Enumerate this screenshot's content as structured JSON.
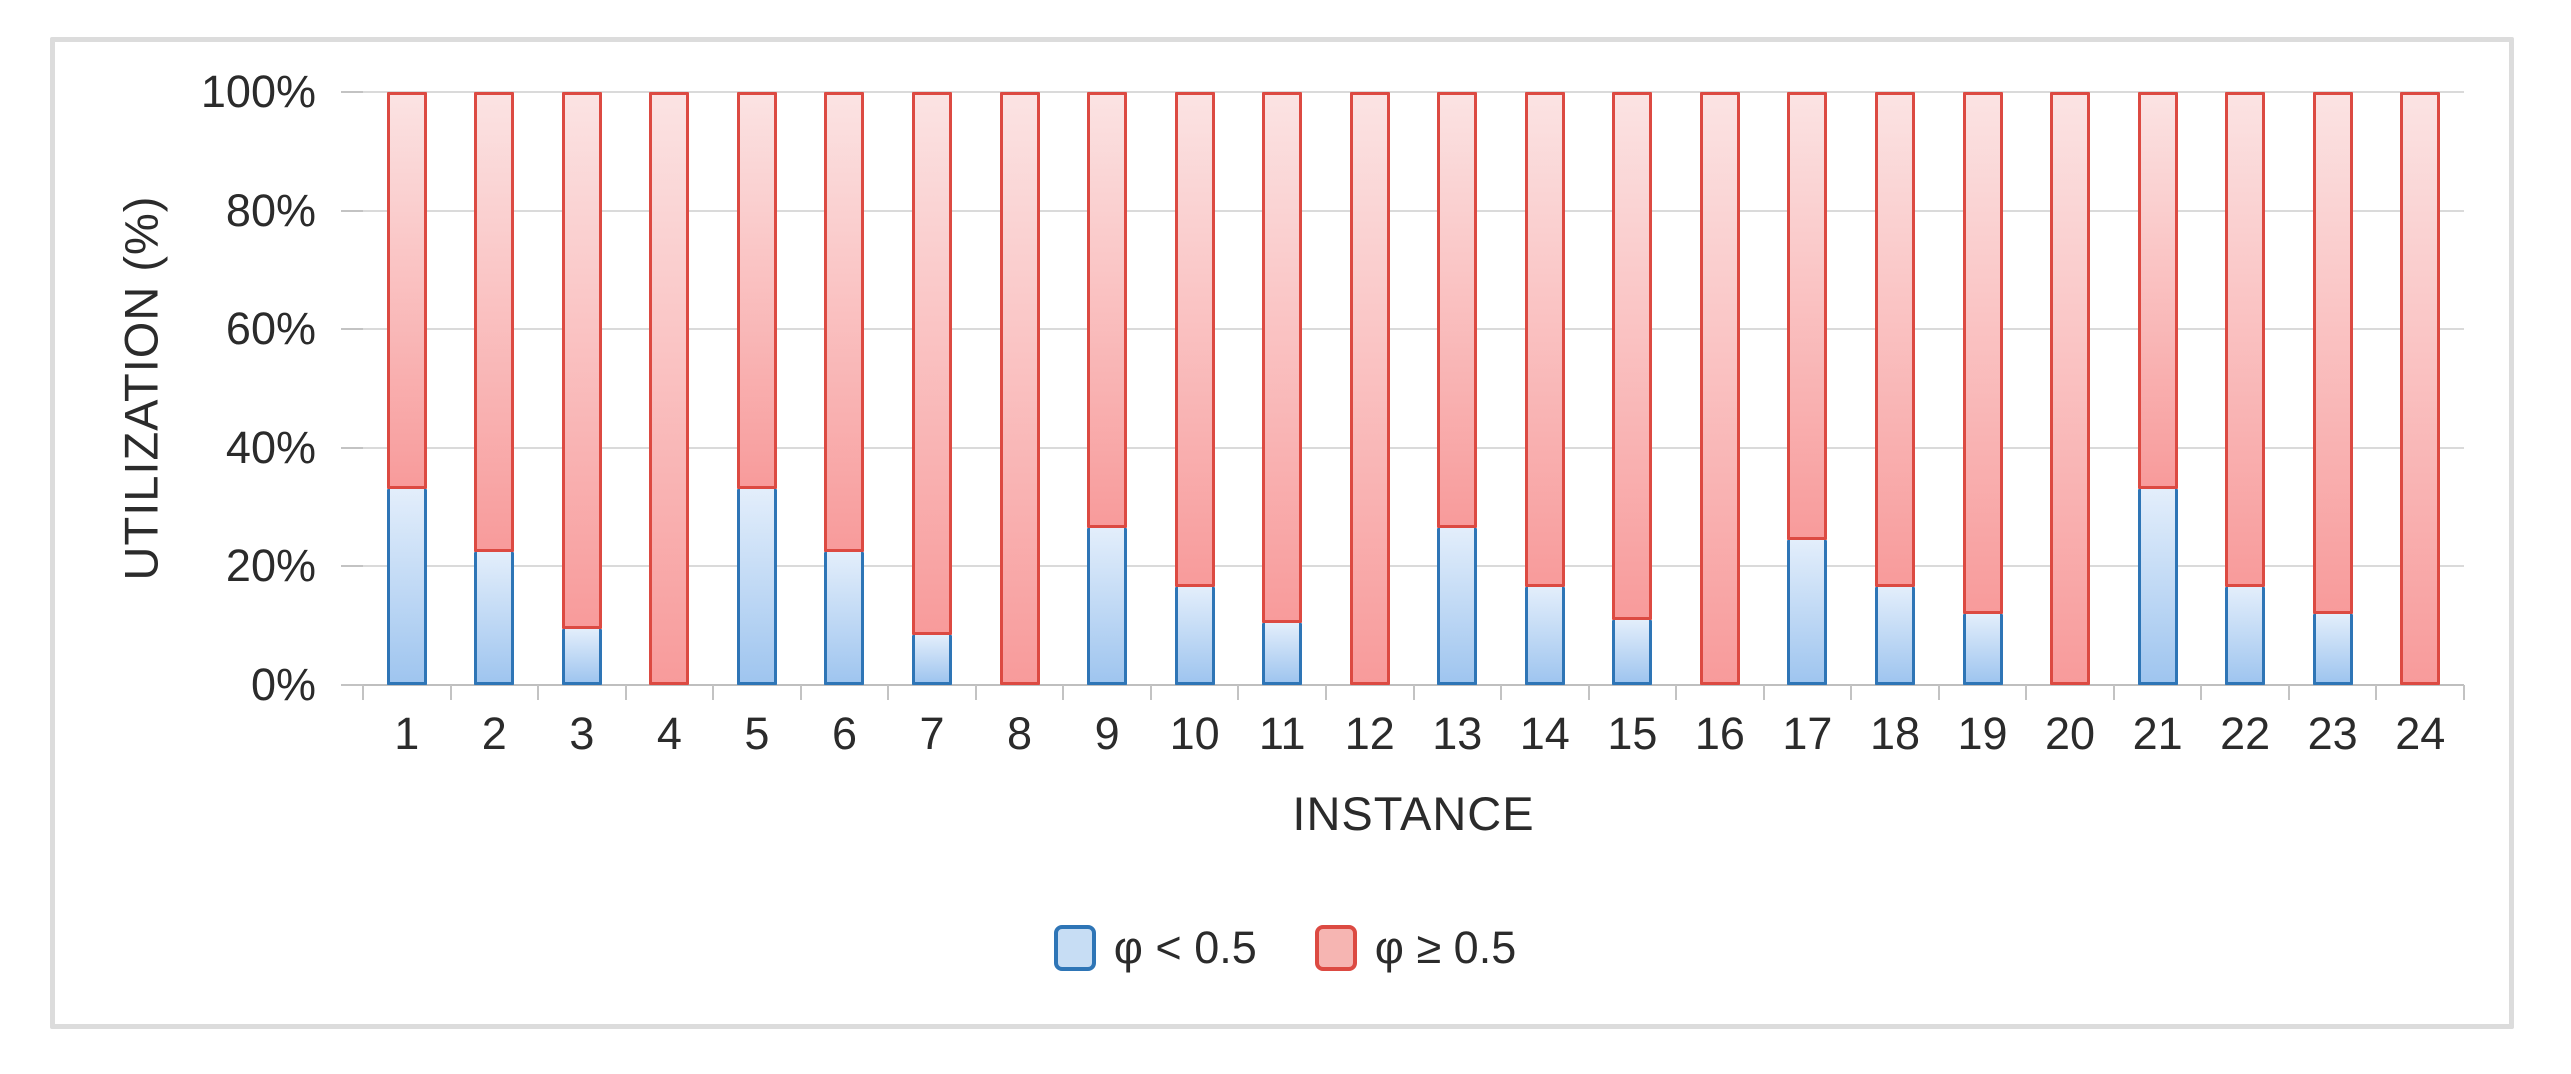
{
  "figure": {
    "kind": "excel-style stacked bar figure",
    "background": "#ffffff",
    "frame_border_color": "#DCDCDC"
  },
  "y_axis": {
    "title": "UTILIZATION (%)",
    "tick_labels": [
      "100%",
      "80%",
      "60%",
      "40%",
      "20%",
      "0%"
    ],
    "tick_values": [
      100,
      80,
      60,
      40,
      20,
      0
    ]
  },
  "x_axis": {
    "title": "INSTANCE",
    "tick_labels": [
      "1",
      "2",
      "3",
      "4",
      "5",
      "6",
      "7",
      "8",
      "9",
      "10",
      "11",
      "12",
      "13",
      "14",
      "15",
      "16",
      "17",
      "18",
      "19",
      "20",
      "21",
      "22",
      "23",
      "24"
    ]
  },
  "legend": {
    "position": "bottom-center",
    "items": [
      {
        "label": "φ < 0.5",
        "swatch_fill": "#C7DDF4",
        "swatch_border": "#2E75B6"
      },
      {
        "label": "φ ≥ 0.5",
        "swatch_fill": "#F6B5B2",
        "swatch_border": "#DC4A42"
      }
    ]
  },
  "chart_data": {
    "type": "bar",
    "subtype": "100%-stacked-column",
    "title": "",
    "xlabel": "INSTANCE",
    "ylabel": "UTILIZATION (%)",
    "ylim": [
      0,
      100
    ],
    "grid": "horizontal",
    "legend_position": "bottom",
    "categories": [
      "1",
      "2",
      "3",
      "4",
      "5",
      "6",
      "7",
      "8",
      "9",
      "10",
      "11",
      "12",
      "13",
      "14",
      "15",
      "16",
      "17",
      "18",
      "19",
      "20",
      "21",
      "22",
      "23",
      "24"
    ],
    "series": [
      {
        "name": "φ < 0.5",
        "stack_order": "bottom",
        "border_color": "#2E75B6",
        "fill_top": "#E3EEFB",
        "fill_bottom": "#9FC5EF",
        "values": [
          33,
          22.5,
          9.5,
          0,
          33,
          22.5,
          8.5,
          0,
          26.5,
          16.5,
          10.5,
          0,
          26.5,
          16.5,
          11,
          0,
          24.5,
          16.5,
          12,
          0,
          33,
          16.5,
          12,
          0
        ]
      },
      {
        "name": "φ ≥ 0.5",
        "stack_order": "top",
        "border_color": "#DC4A42",
        "fill_top": "#FBE3E3",
        "fill_bottom": "#F89B9B",
        "values": [
          67,
          77.5,
          90.5,
          100,
          67,
          77.5,
          91.5,
          100,
          73.5,
          83.5,
          89.5,
          100,
          73.5,
          83.5,
          89,
          100,
          75.5,
          83.5,
          88,
          100,
          67,
          83.5,
          88,
          100
        ]
      }
    ]
  }
}
